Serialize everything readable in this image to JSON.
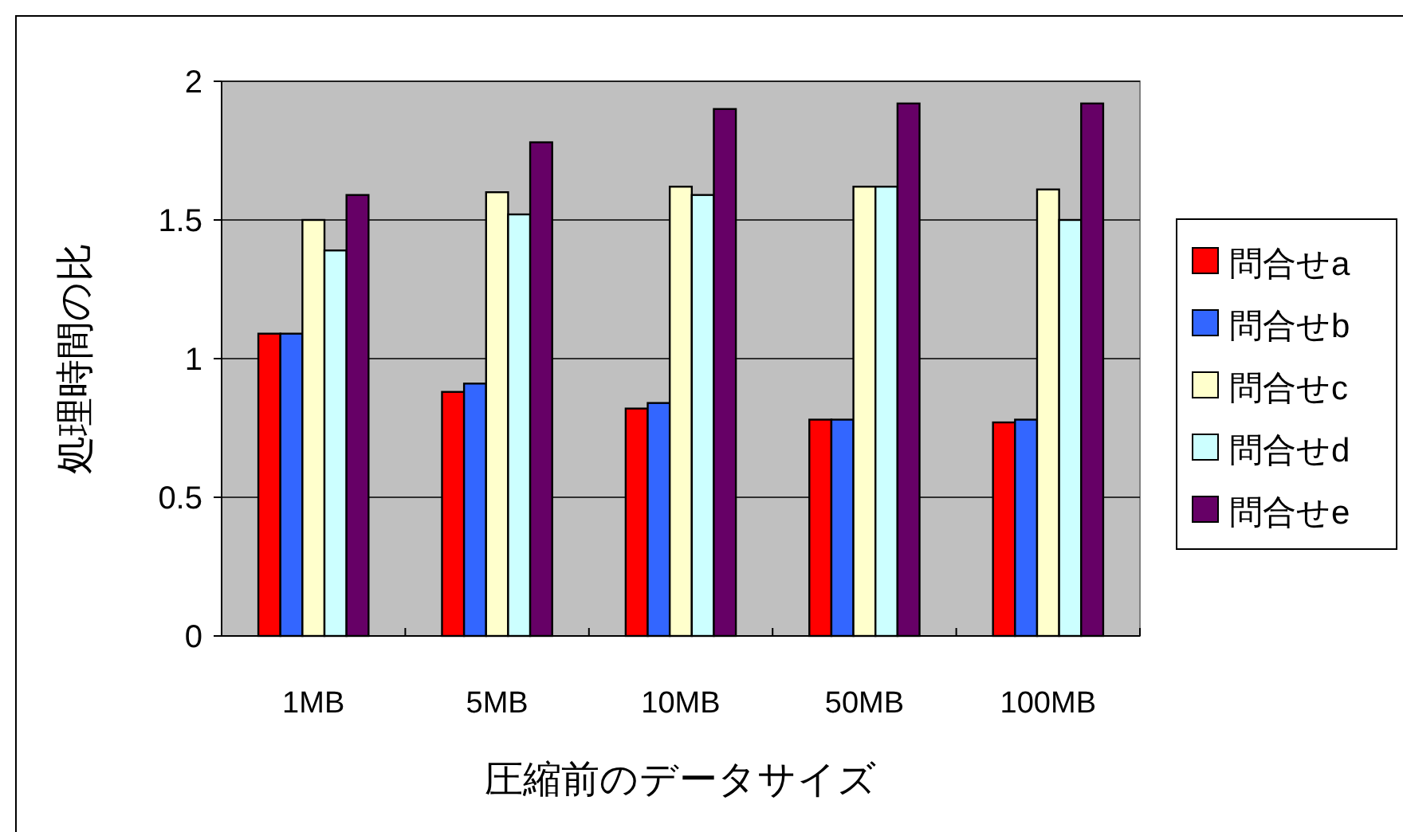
{
  "chart_data": {
    "type": "bar",
    "xlabel": "圧縮前のデータサイズ",
    "ylabel": "処理時間の比",
    "categories": [
      "1MB",
      "5MB",
      "10MB",
      "50MB",
      "100MB"
    ],
    "series": [
      {
        "name": "問合せa",
        "color": "#ff0000",
        "values": [
          1.09,
          0.88,
          0.82,
          0.78,
          0.77
        ]
      },
      {
        "name": "問合せb",
        "color": "#3366ff",
        "values": [
          1.09,
          0.91,
          0.84,
          0.78,
          0.78
        ]
      },
      {
        "name": "問合せc",
        "color": "#ffffcc",
        "values": [
          1.5,
          1.6,
          1.62,
          1.62,
          1.61
        ]
      },
      {
        "name": "問合せd",
        "color": "#ccffff",
        "values": [
          1.39,
          1.52,
          1.59,
          1.62,
          1.5
        ]
      },
      {
        "name": "問合せe",
        "color": "#660066",
        "values": [
          1.59,
          1.78,
          1.9,
          1.92,
          1.92
        ]
      }
    ],
    "ylim": [
      0,
      2
    ],
    "yticks": [
      0,
      0.5,
      1,
      1.5,
      2
    ],
    "grid": "y",
    "legend": "right"
  }
}
